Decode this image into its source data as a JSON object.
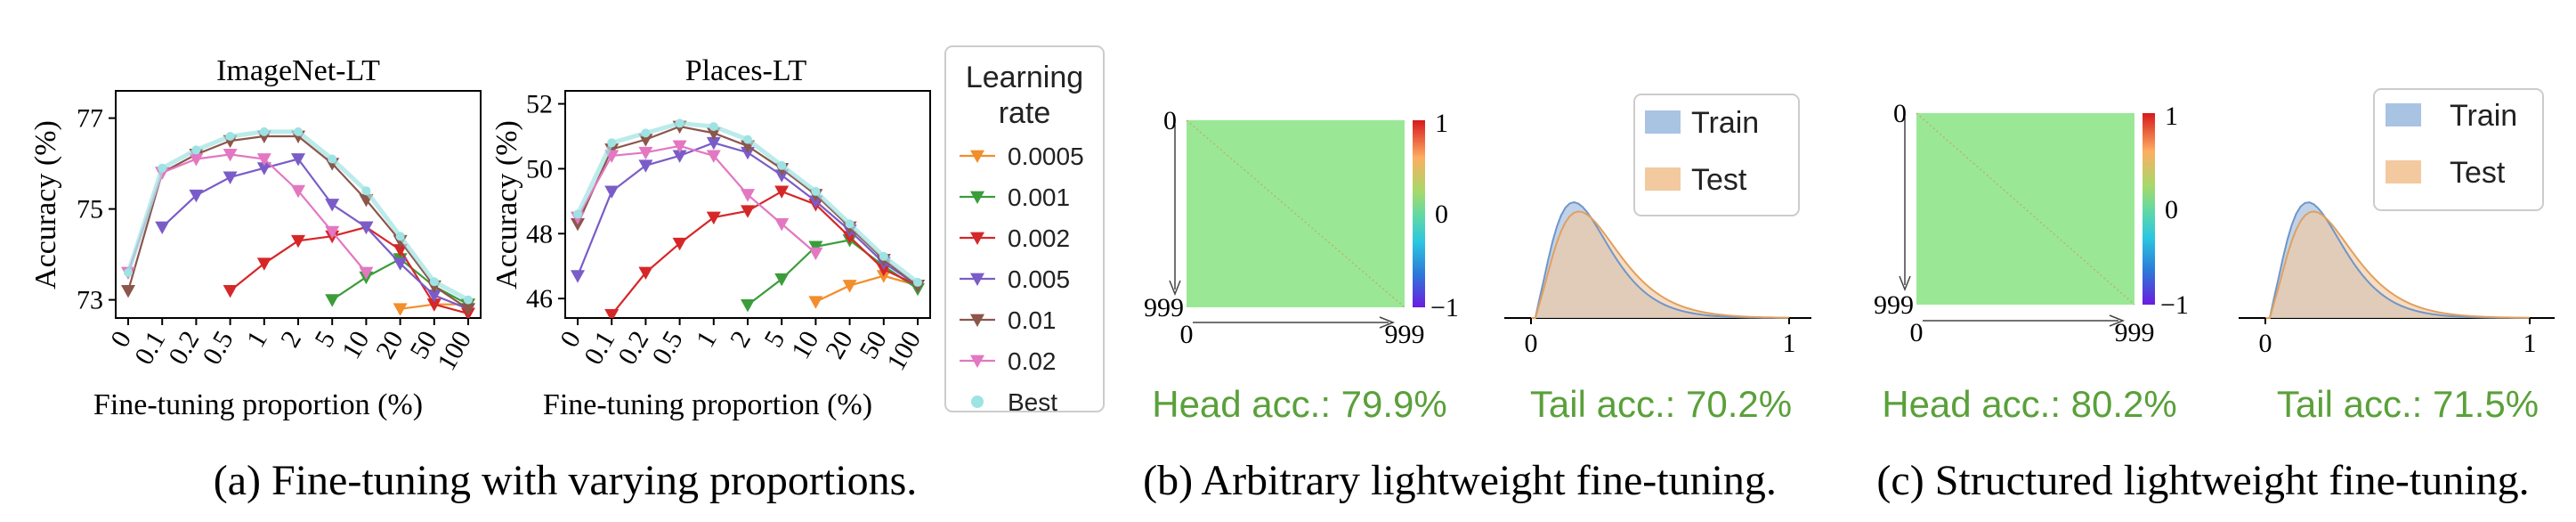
{
  "chart_data": [
    {
      "type": "line",
      "title": "ImageNet-LT",
      "xlabel": "Fine-tuning proportion (%)",
      "ylabel": "Accuracy (%)",
      "x_categories": [
        "0",
        "0.1",
        "0.2",
        "0.5",
        "1",
        "2",
        "5",
        "10",
        "20",
        "50",
        "100"
      ],
      "y_ticks": [
        "73",
        "75",
        "77"
      ],
      "ylim": [
        72.6,
        77.6
      ],
      "series": [
        {
          "name": "0.0005",
          "color": "#f28e2b",
          "values": [
            null,
            null,
            null,
            null,
            null,
            null,
            null,
            null,
            72.8,
            72.9,
            72.9
          ]
        },
        {
          "name": "0.001",
          "color": "#3a9d3a",
          "values": [
            null,
            null,
            null,
            null,
            null,
            null,
            73.0,
            73.5,
            73.9,
            73.3,
            72.9
          ]
        },
        {
          "name": "0.002",
          "color": "#d62728",
          "values": [
            null,
            null,
            null,
            73.2,
            73.8,
            74.3,
            74.4,
            74.6,
            74.1,
            72.9,
            72.7
          ]
        },
        {
          "name": "0.005",
          "color": "#7a5cc8",
          "values": [
            null,
            74.6,
            75.3,
            75.7,
            75.9,
            76.1,
            75.1,
            74.6,
            73.8,
            73.1,
            72.8
          ]
        },
        {
          "name": "0.01",
          "color": "#8c564b",
          "values": [
            73.2,
            75.8,
            76.2,
            76.5,
            76.6,
            76.6,
            76.0,
            75.2,
            74.3,
            73.3,
            72.8
          ]
        },
        {
          "name": "0.02",
          "color": "#e377c2",
          "values": [
            73.6,
            75.8,
            76.1,
            76.2,
            76.1,
            75.4,
            74.5,
            73.6,
            null,
            null,
            null
          ]
        },
        {
          "name": "Best",
          "color": "#9ee3e3",
          "values": [
            73.6,
            75.9,
            76.3,
            76.6,
            76.7,
            76.7,
            76.1,
            75.4,
            74.4,
            73.4,
            73.0
          ]
        }
      ]
    },
    {
      "type": "line",
      "title": "Places-LT",
      "xlabel": "Fine-tuning proportion (%)",
      "ylabel": "Accuracy (%)",
      "x_categories": [
        "0",
        "0.1",
        "0.2",
        "0.5",
        "1",
        "2",
        "5",
        "10",
        "20",
        "50",
        "100"
      ],
      "y_ticks": [
        "46",
        "48",
        "50",
        "52"
      ],
      "ylim": [
        45.4,
        52.4
      ],
      "series": [
        {
          "name": "0.0005",
          "color": "#f28e2b",
          "values": [
            null,
            null,
            null,
            null,
            null,
            null,
            null,
            45.9,
            46.4,
            46.7,
            46.4
          ]
        },
        {
          "name": "0.001",
          "color": "#3a9d3a",
          "values": [
            null,
            null,
            null,
            null,
            null,
            45.8,
            46.6,
            47.6,
            47.8,
            47.0,
            46.3
          ]
        },
        {
          "name": "0.002",
          "color": "#d62728",
          "values": [
            null,
            45.5,
            46.8,
            47.7,
            48.5,
            48.7,
            49.3,
            48.9,
            47.9,
            46.9,
            46.4
          ]
        },
        {
          "name": "0.005",
          "color": "#7a5cc8",
          "values": [
            46.7,
            49.3,
            50.1,
            50.4,
            50.8,
            50.5,
            49.8,
            49.0,
            48.1,
            47.1,
            46.4
          ]
        },
        {
          "name": "0.01",
          "color": "#8c564b",
          "values": [
            48.3,
            50.6,
            50.9,
            51.3,
            51.1,
            50.7,
            50.0,
            49.2,
            48.2,
            47.2,
            46.4
          ]
        },
        {
          "name": "0.02",
          "color": "#e377c2",
          "values": [
            48.5,
            50.4,
            50.5,
            50.7,
            50.4,
            49.2,
            48.3,
            47.4,
            null,
            null,
            null
          ]
        },
        {
          "name": "Best",
          "color": "#9ee3e3",
          "values": [
            48.6,
            50.8,
            51.1,
            51.4,
            51.3,
            50.9,
            50.1,
            49.3,
            48.3,
            47.3,
            46.5
          ]
        }
      ]
    },
    {
      "type": "heatmap",
      "x_ticks": [
        "0",
        "999"
      ],
      "y_ticks": [
        "0",
        "999"
      ],
      "colorbar_ticks": [
        "1",
        "0",
        "−1"
      ],
      "caption": "Head acc.: 79.9%"
    },
    {
      "type": "area",
      "x_ticks": [
        "0",
        "1"
      ],
      "legend": [
        "Train",
        "Test"
      ],
      "caption": "Tail acc.: 70.2%"
    },
    {
      "type": "heatmap",
      "x_ticks": [
        "0",
        "999"
      ],
      "y_ticks": [
        "0",
        "999"
      ],
      "colorbar_ticks": [
        "1",
        "0",
        "−1"
      ],
      "caption": "Head acc.: 80.2%"
    },
    {
      "type": "area",
      "x_ticks": [
        "0",
        "1"
      ],
      "legend": [
        "Train",
        "Test"
      ],
      "caption": "Tail acc.: 71.5%"
    }
  ],
  "legend": {
    "title_line1": "Learning",
    "title_line2": "rate",
    "items": [
      {
        "label": "0.0005",
        "color": "#f28e2b",
        "marker": "tri"
      },
      {
        "label": "0.001",
        "color": "#3a9d3a",
        "marker": "tri"
      },
      {
        "label": "0.002",
        "color": "#d62728",
        "marker": "tri"
      },
      {
        "label": "0.005",
        "color": "#7a5cc8",
        "marker": "tri"
      },
      {
        "label": "0.01",
        "color": "#8c564b",
        "marker": "tri"
      },
      {
        "label": "0.02",
        "color": "#e377c2",
        "marker": "tri"
      },
      {
        "label": "Best",
        "color": "#9ee3e3",
        "marker": "dot"
      }
    ]
  },
  "histogram_colors": {
    "train": "#a9c3e3",
    "test": "#f3c9a0"
  },
  "heatmap_fill": "#9ae896",
  "captions": {
    "a": "(a) Fine-tuning with varying proportions.",
    "b": "(b) Arbitrary lightweight fine-tuning.",
    "c": "(c) Structured lightweight fine-tuning."
  }
}
